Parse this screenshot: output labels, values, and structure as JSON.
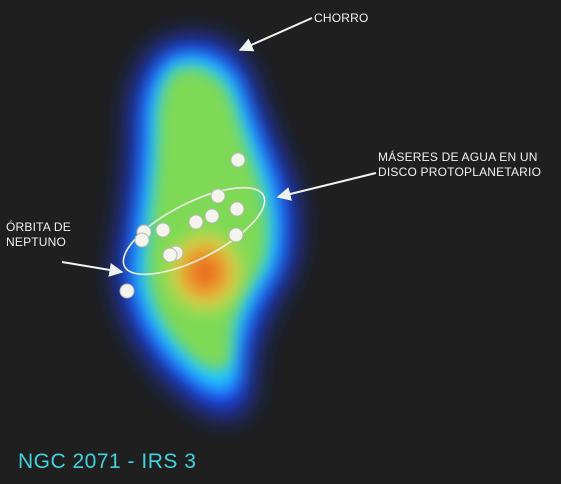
{
  "labels": {
    "jet": "CHORRO",
    "maser_line1": "MÁSERES DE AGUA EN UN",
    "maser_line2": "DISCO PROTOPLANETARIO",
    "orbit_line1": "ÓRBITA DE",
    "orbit_line2": "NEPTUNO",
    "title": "NGC 2071 - IRS 3"
  },
  "colors": {
    "background": "#1f1f1f",
    "title": "#3fd3df",
    "labels": "#f2f2f2",
    "outer_glow": "#1e3cff",
    "mid_glow": "#21c7ff",
    "green_region": "#7ed957",
    "core": "#e2541d"
  },
  "icons": [
    "arrow-icon"
  ]
}
